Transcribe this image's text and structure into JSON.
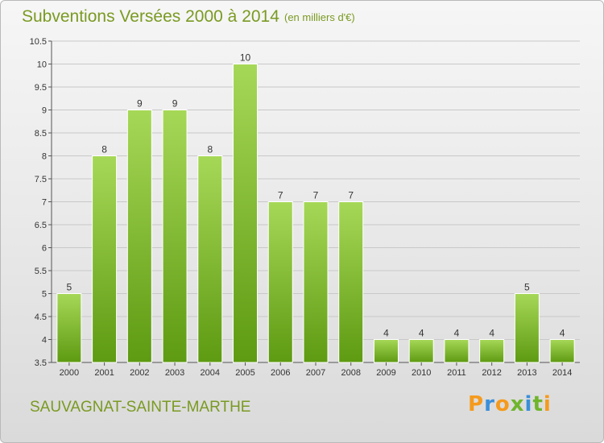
{
  "header": {
    "title": "Subventions Versées 2000 à 2014",
    "unit_note": "(en milliers d'€)"
  },
  "footer": {
    "commune": "SAUVAGNAT-SAINTE-MARTHE",
    "logo_text": "Proxiti",
    "logo_colors": [
      "#f59a1d",
      "#3a8fd9",
      "#f59a1d",
      "#6fb52c",
      "#3a8fd9",
      "#6fb52c",
      "#f59a1d"
    ]
  },
  "colors": {
    "bar_top": "#a6d857",
    "bar_bottom": "#5e9a12",
    "title": "#7a9a22",
    "grid": "#c8c8c8"
  },
  "chart_data": {
    "type": "bar",
    "title": "Subventions Versées 2000 à 2014",
    "subtitle": "(en milliers d'€)",
    "categories": [
      "2000",
      "2001",
      "2002",
      "2003",
      "2004",
      "2005",
      "2006",
      "2007",
      "2008",
      "2009",
      "2010",
      "2011",
      "2012",
      "2013",
      "2014"
    ],
    "values": [
      5,
      8,
      9,
      9,
      8,
      10,
      7,
      7,
      7,
      4,
      4,
      4,
      4,
      5,
      4
    ],
    "ylim": [
      3.5,
      10.5
    ],
    "yticks": [
      "3.5",
      "4",
      "4.5",
      "5",
      "5.5",
      "6",
      "6.5",
      "7",
      "7.5",
      "8",
      "8.5",
      "9",
      "9.5",
      "10",
      "10.5"
    ],
    "xlabel": "",
    "ylabel": "",
    "grid": true,
    "legend": "none"
  }
}
